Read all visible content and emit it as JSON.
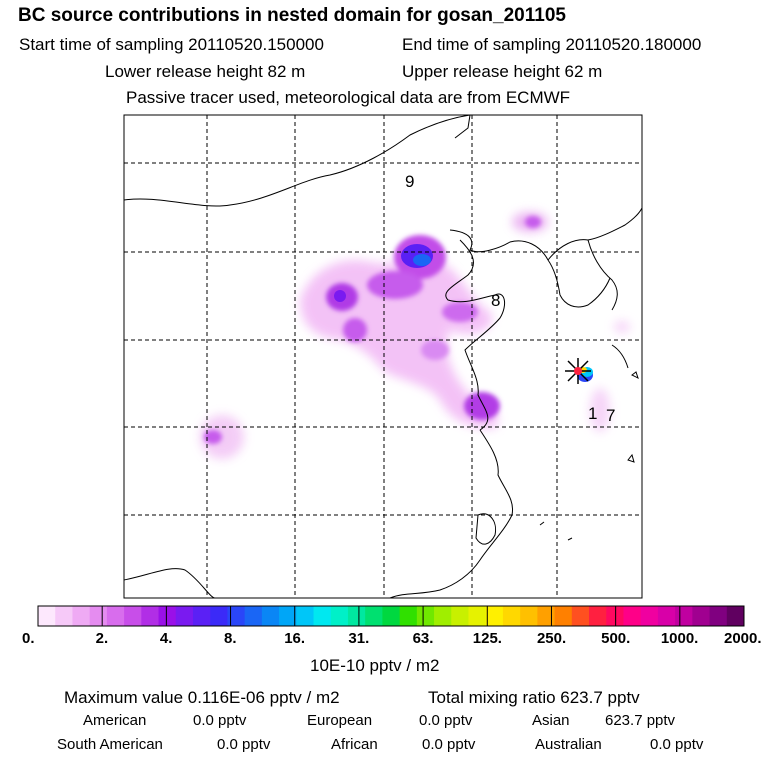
{
  "title": "BC  source contributions in nested domain for gosan_201105",
  "header": {
    "start_label": "Start time of sampling 20110520.150000",
    "end_label": "End time of sampling 20110520.180000",
    "lower_label": "Lower release height   82 m",
    "upper_label": "Upper release height   62 m",
    "tracer_label": "Passive tracer used, meteorological data are from ECMWF"
  },
  "map": {
    "region_labels": [
      "9",
      "8",
      "1",
      "7"
    ],
    "receptor_marker": "gosan-receptor-star"
  },
  "colorbar": {
    "tick_labels": [
      "0.",
      "2.",
      "4.",
      "8.",
      "16.",
      "31.",
      "63.",
      "125.",
      "250.",
      "500.",
      "1000.",
      "2000."
    ],
    "unit_label": "10E-10 pptv / m2",
    "colors": [
      "#fde8fd",
      "#f6c9f8",
      "#efaaf4",
      "#e58cf0",
      "#d86ded",
      "#c84ee9",
      "#b12ee6",
      "#9a10e8",
      "#7a1af0",
      "#5b20f5",
      "#3b2af8",
      "#2a46f8",
      "#1a66f5",
      "#0a86f5",
      "#00a6f7",
      "#00c6f8",
      "#00e8f0",
      "#00f0c8",
      "#00e8a0",
      "#00e070",
      "#00d840",
      "#30e000",
      "#70e800",
      "#a0ee00",
      "#c8f000",
      "#e6f200",
      "#fff000",
      "#ffd800",
      "#ffc000",
      "#ffa000",
      "#ff8000",
      "#ff5020",
      "#ff2040",
      "#ff0860",
      "#ff0088",
      "#f000a0",
      "#d800a8",
      "#c000a0",
      "#a00090",
      "#800080",
      "#600060"
    ]
  },
  "stats": {
    "max_label": "Maximum value  0.116E-06 pptv / m2",
    "total_label": "Total mixing ratio     623.7 pptv",
    "american_label": "American",
    "american_value": "0.0 pptv",
    "european_label": "European",
    "european_value": "0.0 pptv",
    "asian_label": "Asian",
    "asian_value": "623.7 pptv",
    "south_american_label": "South American",
    "south_american_value": "0.0 pptv",
    "african_label": "African",
    "african_value": "0.0 pptv",
    "australian_label": "Australian",
    "australian_value": "0.0 pptv"
  }
}
